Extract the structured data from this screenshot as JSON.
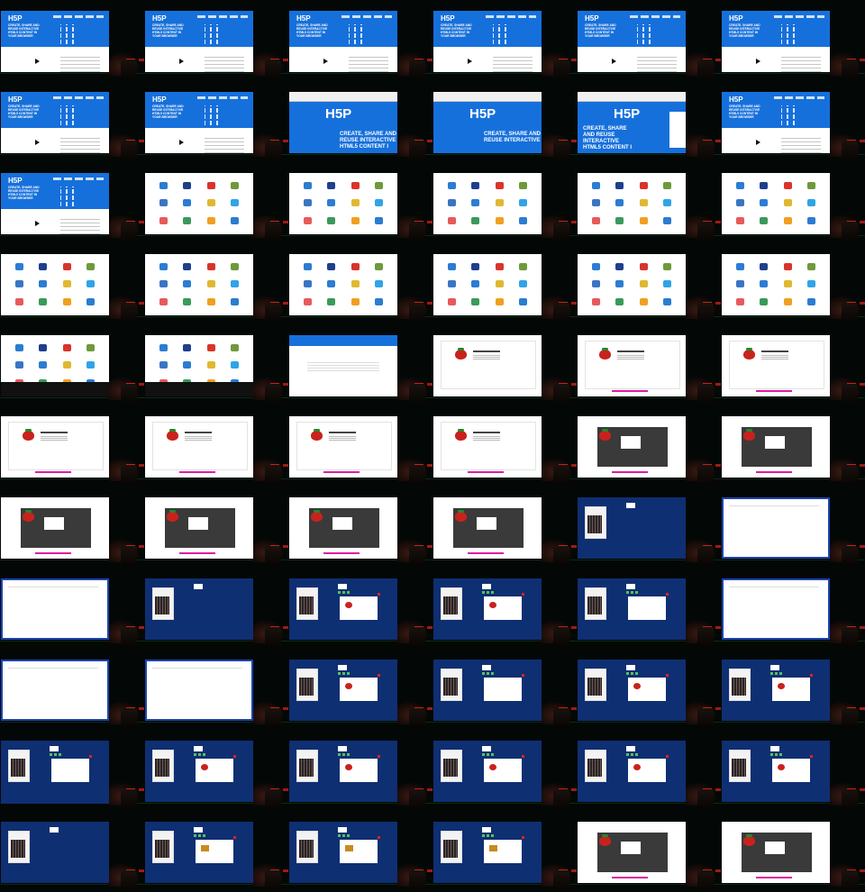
{
  "landing": {
    "logo": "H5P",
    "tagline": "CREATE, SHARE AND REUSE INTERACTIVE HTML5 CONTENT IN YOUR BROWSER",
    "zoom_headline_a": "CREATE, SHARE AND REUSE INTERACTIVE HTML5 CONTENT I",
    "zoom_headline_b": "CREATE, SHARE AND REUSE INTERACTIVE"
  },
  "colors": {
    "h5p_blue": "#1670db",
    "navy": "#0f2f73",
    "strawberry": "#c9221c",
    "accent_pink": "#e01aa0"
  },
  "frames": [
    "landing",
    "landing",
    "landing",
    "landing",
    "landing",
    "landing",
    "landing",
    "landing",
    "zoom-a",
    "zoom-b",
    "zoom-c",
    "landing",
    "landing",
    "types-a",
    "types",
    "types",
    "types",
    "types",
    "types",
    "types",
    "types",
    "types",
    "types",
    "types-b",
    "types-c",
    "types-c",
    "editor",
    "strawberry",
    "strawberry-wide",
    "strawberry-wide",
    "strawberry-wide",
    "strawberry-wide",
    "strawberry-wide",
    "strawberry-wide",
    "strawberry-dark",
    "strawberry-dark",
    "strawberry-dark",
    "strawberry-dark",
    "strawberry-dark",
    "strawberry-dark",
    "navy-slide",
    "blank",
    "blank-left",
    "navy-slide",
    "navy-card",
    "navy-card",
    "navy-card-menu",
    "blank",
    "blank",
    "blank",
    "navy-card",
    "navy-card-menu",
    "navy-card",
    "navy-card",
    "navy-tall",
    "navy-berry",
    "navy-berry",
    "navy-berry",
    "navy-berry",
    "navy-berry",
    "navy-slide",
    "navy-gold",
    "navy-gold",
    "navy-gold",
    "strawberry-dark",
    "strawberry-dark"
  ],
  "type_colors": [
    "#2b7cd3",
    "#1f3f8a",
    "#d8342c",
    "#6e9a3a",
    "#3a75c4",
    "#2b7cd3",
    "#e0b830",
    "#2fa4e7",
    "#e85a5a",
    "#3a9a5a",
    "#f0a020",
    "#2b7cd3"
  ]
}
